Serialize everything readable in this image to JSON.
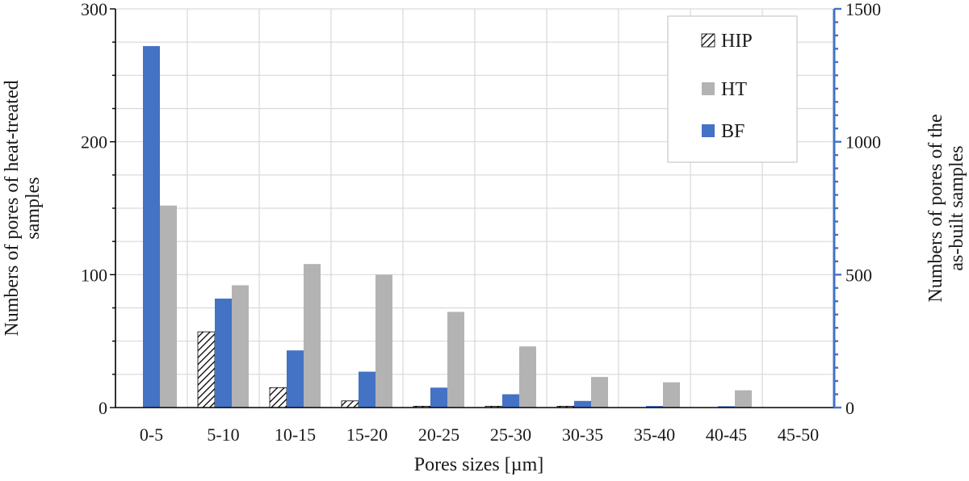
{
  "chart_data": {
    "type": "bar",
    "categories": [
      "0-5",
      "5-10",
      "10-15",
      "15-20",
      "20-25",
      "25-30",
      "30-35",
      "35-40",
      "40-45",
      "45-50"
    ],
    "series": [
      {
        "name": "HIP",
        "axis": "left",
        "values": [
          0,
          57,
          15,
          5,
          1,
          1,
          1,
          0,
          0,
          0
        ],
        "color": "#ffffff",
        "pattern": "diagonal-hatch"
      },
      {
        "name": "BF",
        "axis": "right",
        "values": [
          1360,
          410,
          215,
          135,
          75,
          50,
          25,
          6,
          5,
          0
        ],
        "color": "#4472c4"
      },
      {
        "name": "HT",
        "axis": "left",
        "values": [
          152,
          92,
          108,
          100,
          72,
          46,
          23,
          19,
          13,
          0
        ],
        "color": "#b3b3b3"
      }
    ],
    "xlabel": "Pores sizes [µm]",
    "ylabel": "Numbers of pores of heat-treated samples",
    "ylabel_right": "Numbers of pores of the as-built samples",
    "ylim": [
      0,
      300
    ],
    "ylim_right": [
      0,
      1500
    ],
    "yticks": [
      "0",
      "100",
      "200",
      "300"
    ],
    "yticks_right": [
      "0",
      "500",
      "1000",
      "1500"
    ],
    "legend": [
      "HIP",
      "HT",
      "BF"
    ],
    "legend_position": "top-right",
    "grid": true,
    "right_axis_color": "#4472c4"
  }
}
